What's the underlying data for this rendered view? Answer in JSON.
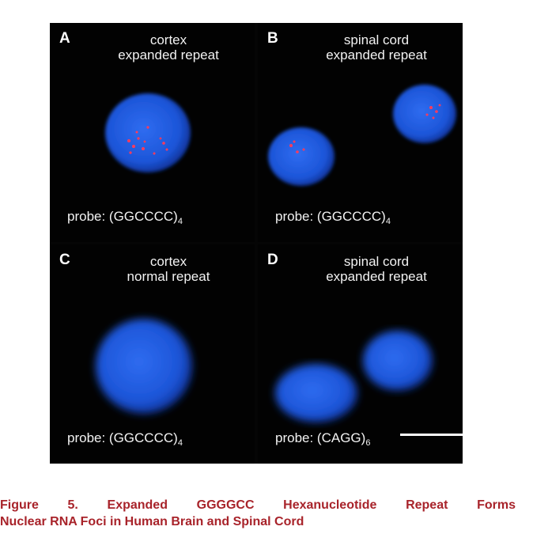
{
  "panels": [
    {
      "letter": "A",
      "line1": "cortex",
      "line2": "expanded repeat",
      "probe": "probe: (GGCCCC)",
      "probe_sub": "4"
    },
    {
      "letter": "B",
      "line1": "spinal cord",
      "line2": "expanded repeat",
      "probe": "probe: (GGCCCC)",
      "probe_sub": "4"
    },
    {
      "letter": "C",
      "line1": "cortex",
      "line2": "normal repeat",
      "probe": "probe: (GGCCCC)",
      "probe_sub": "4"
    },
    {
      "letter": "D",
      "line1": "spinal cord",
      "line2": "expanded repeat",
      "probe": "probe: (CAGG)",
      "probe_sub": "6"
    }
  ],
  "caption": {
    "words_line1": [
      "Figure",
      "5.",
      "Expanded",
      "GGGGCC",
      "Hexanucleotide",
      "Repeat",
      "Forms"
    ],
    "line2": "Nuclear RNA Foci in Human Brain and Spinal Cord"
  },
  "colors": {
    "nucleus": "#1f5fe0",
    "foci": "#ff3b5c",
    "caption": "#a8232a"
  }
}
